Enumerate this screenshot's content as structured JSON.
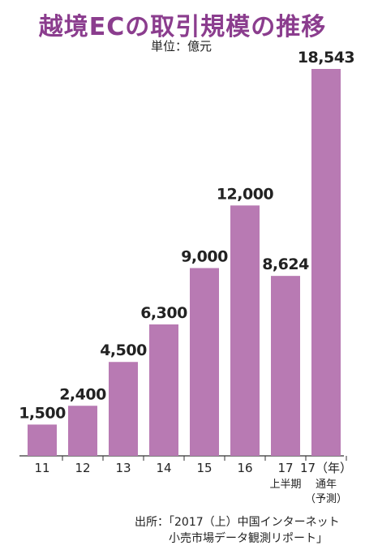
{
  "title": "越境ECの取引規模の推移",
  "unit": "単位：億元",
  "chart_data": {
    "type": "bar",
    "categories": [
      "11",
      "12",
      "13",
      "14",
      "15",
      "16",
      "17",
      "17（年）"
    ],
    "category_sublabels": [
      "",
      "",
      "",
      "",
      "",
      "",
      "上半期",
      "通年"
    ],
    "category_sublabels2": [
      "",
      "",
      "",
      "",
      "",
      "",
      "",
      "（予測）"
    ],
    "values": [
      1500,
      2400,
      4500,
      6300,
      9000,
      12000,
      8624,
      18543
    ],
    "value_labels": [
      "1,500",
      "2,400",
      "4,500",
      "6,300",
      "9,000",
      "12,000",
      "8,624",
      "18,543"
    ],
    "ylim": [
      0,
      18543
    ],
    "bar_color": "#b87ab3",
    "title_color": "#8b3d8e"
  },
  "source": {
    "line1": "出所：「2017（上）中国インターネット",
    "line2": "小売市場データ観測リポート」"
  }
}
